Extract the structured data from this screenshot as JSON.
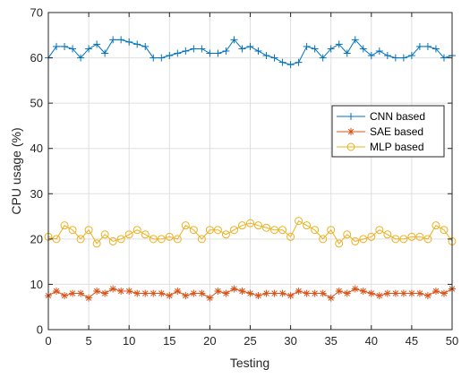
{
  "chart_data": {
    "type": "line",
    "xlabel": "Testing",
    "ylabel": "CPU usage (%)",
    "xlim": [
      0,
      50
    ],
    "ylim": [
      0,
      70
    ],
    "xticks": [
      0,
      5,
      10,
      15,
      20,
      25,
      30,
      35,
      40,
      45,
      50
    ],
    "yticks": [
      0,
      10,
      20,
      30,
      40,
      50,
      60,
      70
    ],
    "grid": true,
    "legend_position": "middle-right",
    "series": [
      {
        "name": "CNN based",
        "color": "#0072BD",
        "marker": "plus",
        "x": [
          0,
          1,
          2,
          3,
          4,
          5,
          6,
          7,
          8,
          9,
          10,
          11,
          12,
          13,
          14,
          15,
          16,
          17,
          18,
          19,
          20,
          21,
          22,
          23,
          24,
          25,
          26,
          27,
          28,
          29,
          30,
          31,
          32,
          33,
          34,
          35,
          36,
          37,
          38,
          39,
          40,
          41,
          42,
          43,
          44,
          45,
          46,
          47,
          48,
          49,
          50
        ],
        "values": [
          60,
          62.5,
          62.5,
          62,
          60,
          62,
          63,
          61,
          64,
          64,
          63.5,
          63,
          62.5,
          60,
          60,
          60.5,
          61,
          61.5,
          62,
          62,
          61,
          61,
          61.5,
          64,
          62,
          62.5,
          61.5,
          60.5,
          60,
          59,
          58.5,
          59,
          62.5,
          62,
          60,
          62,
          63,
          61,
          64,
          62,
          60.5,
          61.5,
          60.5,
          60,
          60,
          60.5,
          62.5,
          62.5,
          62,
          60,
          60.5
        ]
      },
      {
        "name": "SAE based",
        "color": "#D95319",
        "marker": "asterisk",
        "x": [
          0,
          1,
          2,
          3,
          4,
          5,
          6,
          7,
          8,
          9,
          10,
          11,
          12,
          13,
          14,
          15,
          16,
          17,
          18,
          19,
          20,
          21,
          22,
          23,
          24,
          25,
          26,
          27,
          28,
          29,
          30,
          31,
          32,
          33,
          34,
          35,
          36,
          37,
          38,
          39,
          40,
          41,
          42,
          43,
          44,
          45,
          46,
          47,
          48,
          49,
          50
        ],
        "values": [
          7.5,
          8.5,
          7.5,
          8,
          8,
          7,
          8.5,
          8,
          9,
          8.5,
          8.5,
          8,
          8,
          8,
          8,
          7.5,
          8.5,
          7.5,
          8,
          8,
          7,
          8.5,
          8,
          9,
          8.5,
          8,
          7.5,
          8,
          8,
          8,
          7.5,
          8.5,
          8,
          8,
          8,
          7,
          8.5,
          8,
          9,
          8.5,
          8,
          7.5,
          8,
          8,
          8,
          8,
          8,
          7.5,
          8.5,
          8,
          9
        ]
      },
      {
        "name": "MLP based",
        "color": "#EDB120",
        "marker": "circle",
        "x": [
          0,
          1,
          2,
          3,
          4,
          5,
          6,
          7,
          8,
          9,
          10,
          11,
          12,
          13,
          14,
          15,
          16,
          17,
          18,
          19,
          20,
          21,
          22,
          23,
          24,
          25,
          26,
          27,
          28,
          29,
          30,
          31,
          32,
          33,
          34,
          35,
          36,
          37,
          38,
          39,
          40,
          41,
          42,
          43,
          44,
          45,
          46,
          47,
          48,
          49,
          50
        ],
        "values": [
          20.5,
          20,
          23,
          22,
          20,
          22,
          19,
          21,
          19.5,
          20,
          21,
          22,
          21,
          20,
          20,
          20.5,
          20,
          23,
          22,
          20,
          22,
          22,
          21,
          22,
          23,
          23.5,
          23,
          22.5,
          22,
          22,
          20.5,
          24,
          23,
          22,
          20,
          22,
          19,
          21,
          19.5,
          20,
          20.5,
          22,
          21,
          20,
          20,
          20.5,
          20.5,
          20,
          23,
          22,
          19.5
        ]
      }
    ]
  }
}
